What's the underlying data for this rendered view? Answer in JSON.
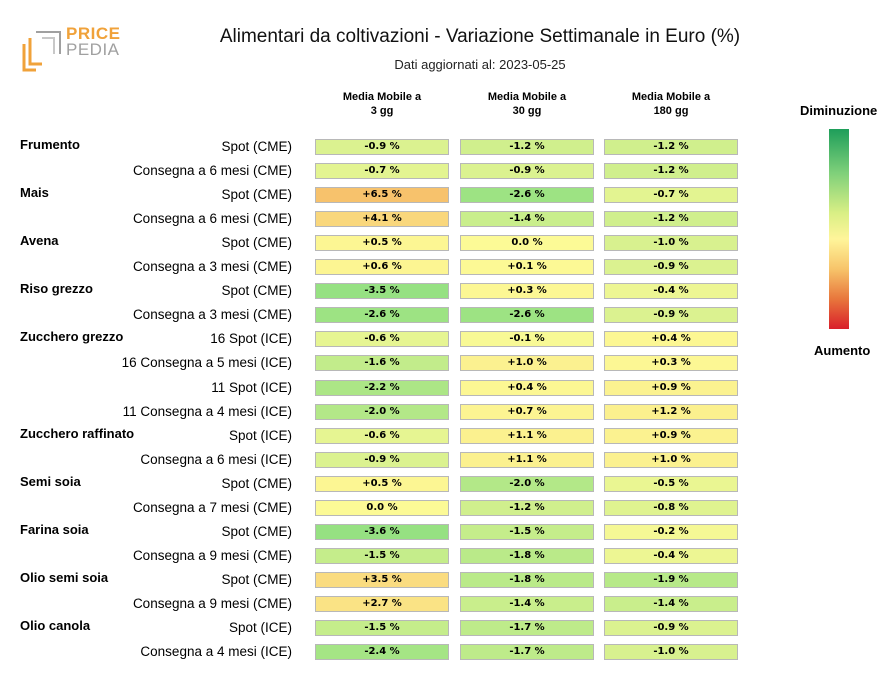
{
  "logo": {
    "line1": "PRICE",
    "line2": "PEDIA",
    "accent": "#f0a23a",
    "grey": "#a0a0a0"
  },
  "title": "Alimentari da coltivazioni - Variazione Settimanale in Euro (%)",
  "subtitle": "Dati aggiornati al: 2023-05-25",
  "legend": {
    "top": "Diminuzione",
    "bottom": "Aumento"
  },
  "chart_data": {
    "type": "table",
    "columns": [
      "Media Mobile a\n3 gg",
      "Media Mobile a\n30 gg",
      "Media Mobile a\n180 gg"
    ],
    "rows": [
      {
        "group": "Frumento",
        "label": "Spot (CME)",
        "values": [
          -0.9,
          -1.2,
          -1.2
        ],
        "texts": [
          "-0.9 %",
          "-1.2 %",
          "-1.2 %"
        ]
      },
      {
        "group": "",
        "label": "Consegna a 6 mesi (CME)",
        "values": [
          -0.7,
          -0.9,
          -1.2
        ],
        "texts": [
          "-0.7 %",
          "-0.9 %",
          "-1.2 %"
        ]
      },
      {
        "group": "Mais",
        "label": "Spot (CME)",
        "values": [
          6.5,
          -2.6,
          -0.7
        ],
        "texts": [
          "+6.5 %",
          "-2.6 %",
          "-0.7 %"
        ]
      },
      {
        "group": "",
        "label": "Consegna a 6 mesi (CME)",
        "values": [
          4.1,
          -1.4,
          -1.2
        ],
        "texts": [
          "+4.1 %",
          "-1.4 %",
          "-1.2 %"
        ]
      },
      {
        "group": "Avena",
        "label": "Spot (CME)",
        "values": [
          0.5,
          0.0,
          -1.0
        ],
        "texts": [
          "+0.5 %",
          "0.0 %",
          "-1.0 %"
        ]
      },
      {
        "group": "",
        "label": "Consegna a 3 mesi (CME)",
        "values": [
          0.6,
          0.1,
          -0.9
        ],
        "texts": [
          "+0.6 %",
          "+0.1 %",
          "-0.9 %"
        ]
      },
      {
        "group": "Riso grezzo",
        "label": "Spot (CME)",
        "values": [
          -3.5,
          0.3,
          -0.4
        ],
        "texts": [
          "-3.5 %",
          "+0.3 %",
          "-0.4 %"
        ]
      },
      {
        "group": "",
        "label": "Consegna a 3 mesi (CME)",
        "values": [
          -2.6,
          -2.6,
          -0.9
        ],
        "texts": [
          "-2.6 %",
          "-2.6 %",
          "-0.9 %"
        ]
      },
      {
        "group": "Zucchero grezzo",
        "label": "16 Spot (ICE)",
        "values": [
          -0.6,
          -0.1,
          0.4
        ],
        "texts": [
          "-0.6 %",
          "-0.1 %",
          "+0.4 %"
        ]
      },
      {
        "group": "",
        "label": "16 Consegna a 5 mesi (ICE)",
        "values": [
          -1.6,
          1.0,
          0.3
        ],
        "texts": [
          "-1.6 %",
          "+1.0 %",
          "+0.3 %"
        ]
      },
      {
        "group": "",
        "label": "11 Spot (ICE)",
        "values": [
          -2.2,
          0.4,
          0.9
        ],
        "texts": [
          "-2.2 %",
          "+0.4 %",
          "+0.9 %"
        ]
      },
      {
        "group": "",
        "label": "11 Consegna a 4 mesi (ICE)",
        "values": [
          -2.0,
          0.7,
          1.2
        ],
        "texts": [
          "-2.0 %",
          "+0.7 %",
          "+1.2 %"
        ]
      },
      {
        "group": "Zucchero raffinato",
        "label": "Spot (ICE)",
        "values": [
          -0.6,
          1.1,
          0.9
        ],
        "texts": [
          "-0.6 %",
          "+1.1 %",
          "+0.9 %"
        ]
      },
      {
        "group": "",
        "label": "Consegna a 6 mesi (ICE)",
        "values": [
          -0.9,
          1.1,
          1.0
        ],
        "texts": [
          "-0.9 %",
          "+1.1 %",
          "+1.0 %"
        ]
      },
      {
        "group": "Semi soia",
        "label": "Spot (CME)",
        "values": [
          0.5,
          -2.0,
          -0.5
        ],
        "texts": [
          "+0.5 %",
          "-2.0 %",
          "-0.5 %"
        ]
      },
      {
        "group": "",
        "label": "Consegna a 7 mesi (CME)",
        "values": [
          0.0,
          -1.2,
          -0.8
        ],
        "texts": [
          "0.0 %",
          "-1.2 %",
          "-0.8 %"
        ]
      },
      {
        "group": "Farina soia",
        "label": "Spot (CME)",
        "values": [
          -3.6,
          -1.5,
          -0.2
        ],
        "texts": [
          "-3.6 %",
          "-1.5 %",
          "-0.2 %"
        ]
      },
      {
        "group": "",
        "label": "Consegna a 9 mesi (CME)",
        "values": [
          -1.5,
          -1.8,
          -0.4
        ],
        "texts": [
          "-1.5 %",
          "-1.8 %",
          "-0.4 %"
        ]
      },
      {
        "group": "Olio semi soia",
        "label": "Spot (CME)",
        "values": [
          3.5,
          -1.8,
          -1.9
        ],
        "texts": [
          "+3.5 %",
          "-1.8 %",
          "-1.9 %"
        ]
      },
      {
        "group": "",
        "label": "Consegna a 9 mesi (CME)",
        "values": [
          2.7,
          -1.4,
          -1.4
        ],
        "texts": [
          "+2.7 %",
          "-1.4 %",
          "-1.4 %"
        ]
      },
      {
        "group": "Olio canola",
        "label": "Spot (ICE)",
        "values": [
          -1.5,
          -1.7,
          -0.9
        ],
        "texts": [
          "-1.5 %",
          "-1.7 %",
          "-0.9 %"
        ]
      },
      {
        "group": "",
        "label": "Consegna a 4 mesi (ICE)",
        "values": [
          -2.4,
          -1.7,
          -1.0
        ],
        "texts": [
          "-2.4 %",
          "-1.7 %",
          "-1.0 %"
        ]
      }
    ]
  }
}
